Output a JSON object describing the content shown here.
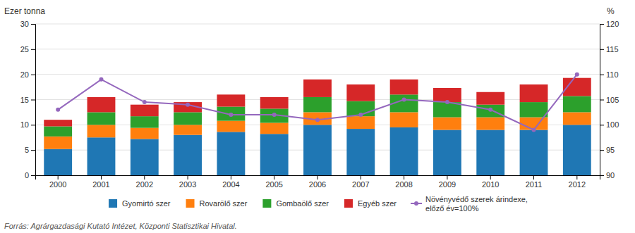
{
  "chart_data": {
    "type": "bar",
    "stacked": true,
    "grid": true,
    "legend": "bottom",
    "ylabel": "Ezer tonna",
    "y2label": "%",
    "source": "Forrás: Agrárgazdasági Kutató Intézet, Központi Statisztikai Hivatal.",
    "categories": [
      "2000",
      "2001",
      "2002",
      "2003",
      "2004",
      "2005",
      "2006",
      "2007",
      "2008",
      "2009",
      "2010",
      "2011",
      "2012"
    ],
    "series": [
      {
        "name": "Gyomirtó szer",
        "values": [
          5.2,
          7.5,
          7.2,
          8.0,
          8.6,
          8.2,
          10.0,
          9.2,
          9.5,
          9.0,
          9.0,
          9.0,
          10.0
        ]
      },
      {
        "name": "Rovarölő szer",
        "values": [
          2.5,
          2.5,
          2.2,
          2.0,
          2.2,
          2.2,
          2.5,
          2.5,
          3.0,
          2.5,
          2.5,
          2.5,
          2.5
        ]
      },
      {
        "name": "Gombaölő szer",
        "values": [
          2.0,
          2.5,
          2.3,
          2.5,
          2.8,
          2.8,
          3.0,
          3.0,
          3.5,
          3.0,
          2.5,
          3.0,
          3.2
        ]
      },
      {
        "name": "Egyéb szer",
        "values": [
          1.3,
          3.0,
          2.3,
          2.0,
          2.4,
          2.3,
          3.5,
          3.3,
          3.0,
          2.8,
          2.5,
          3.5,
          3.6
        ]
      },
      {
        "name": "Növényvédő szerek árindexe,\nelőző év=100%",
        "type": "line",
        "axis": "y2",
        "marker": "circle",
        "values": [
          103,
          109,
          104.5,
          104,
          102,
          102,
          101,
          102,
          105,
          104.5,
          103,
          99,
          110
        ]
      }
    ],
    "ylim": [
      0,
      30
    ],
    "yticks": [
      0,
      5,
      10,
      15,
      20,
      25,
      30
    ],
    "y2lim": [
      90,
      120
    ],
    "y2ticks": [
      90,
      95,
      100,
      105,
      110,
      115,
      120
    ]
  }
}
